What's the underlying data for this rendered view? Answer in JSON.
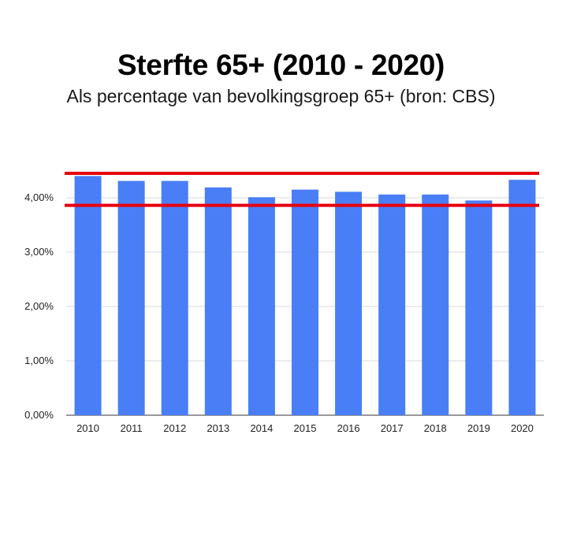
{
  "chart_data": {
    "type": "bar",
    "title": "Sterfte 65+ (2010 - 2020)",
    "subtitle": "Als percentage van bevolkingsgroep 65+ (bron: CBS)",
    "xlabel": "",
    "ylabel": "",
    "categories": [
      "2010",
      "2011",
      "2012",
      "2013",
      "2014",
      "2015",
      "2016",
      "2017",
      "2018",
      "2019",
      "2020"
    ],
    "values": [
      4.4,
      4.31,
      4.31,
      4.19,
      4.01,
      4.15,
      4.11,
      4.06,
      4.06,
      3.95,
      4.33
    ],
    "ylim": [
      0,
      4.5
    ],
    "yticks": [
      0,
      1,
      2,
      3,
      4
    ],
    "ytick_labels": [
      "0,00%",
      "1,00%",
      "2,00%",
      "3,00%",
      "4,00%"
    ],
    "grid": true,
    "annotations": [
      {
        "type": "hline",
        "value": 4.45,
        "color": "#e8000b"
      },
      {
        "type": "hline",
        "value": 3.86,
        "color": "#e8000b"
      }
    ],
    "bar_color": "#4a7ef6"
  }
}
